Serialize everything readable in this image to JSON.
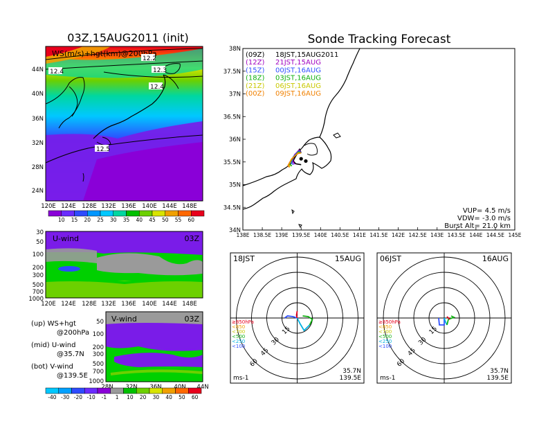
{
  "left_title": "03Z,15AUG2011 (init)",
  "right_title": "Sonde Tracking Forecast",
  "map_panel": {
    "label": "WS(m/s)+hgt(km)@200hPa",
    "contour_labels": [
      "12.2",
      "12.3",
      "12.4",
      "12.4",
      "12.5"
    ],
    "lat_ticks": [
      "44N",
      "40N",
      "36N",
      "32N",
      "28N",
      "24N"
    ],
    "lon_ticks": [
      "120E",
      "124E",
      "128E",
      "132E",
      "136E",
      "140E",
      "144E",
      "148E"
    ]
  },
  "ws_colorbar": {
    "labels": [
      "10",
      "15",
      "20",
      "25",
      "30",
      "35",
      "40",
      "45",
      "50",
      "55",
      "60"
    ],
    "colors": [
      "#8a00d8",
      "#6a2cff",
      "#2e4bff",
      "#0096ff",
      "#00c8ff",
      "#00d7a0",
      "#00c000",
      "#6cd000",
      "#d8e400",
      "#f0a000",
      "#ff6800",
      "#e8001c"
    ]
  },
  "uwind_panel": {
    "label": "U-wind",
    "time": "03Z",
    "p_ticks": [
      "30",
      "50",
      "100",
      "200",
      "300",
      "500",
      "700",
      "1000"
    ],
    "lon_ticks": [
      "120E",
      "124E",
      "128E",
      "132E",
      "136E",
      "140E",
      "144E",
      "148E"
    ]
  },
  "vwind_panel": {
    "label": "V-wind",
    "time": "03Z",
    "p_ticks": [
      "50",
      "100",
      "200",
      "300",
      "500",
      "700",
      "1000"
    ],
    "lat_ticks": [
      "28N",
      "32N",
      "36N",
      "40N",
      "44N"
    ]
  },
  "legend_notes": [
    [
      "(up) WS+hgt",
      "@200hPa"
    ],
    [
      "(mid) U-wind",
      "@35.7N"
    ],
    [
      "(bot) V-wind",
      "@139.5E"
    ]
  ],
  "wind_colorbar": {
    "labels": [
      "-40",
      "-30",
      "-20",
      "-10",
      "-1",
      "1",
      "10",
      "20",
      "30",
      "40",
      "50",
      "60"
    ],
    "colors": [
      "#00c8ff",
      "#00a0ff",
      "#2e4bff",
      "#6a2cff",
      "#8a00d8",
      "#9a9a9a",
      "#00c000",
      "#6cd000",
      "#d8e400",
      "#f0a000",
      "#ff6800",
      "#e8001c"
    ]
  },
  "tracking_map": {
    "launches": [
      {
        "utc": "(09Z)",
        "jst": "18JST,15AUG2011",
        "color": "#000000"
      },
      {
        "utc": "(12Z)",
        "jst": "21JST,15AUG",
        "color": "#a000c0"
      },
      {
        "utc": "(15Z)",
        "jst": "00JST,16AUG",
        "color": "#3050ff"
      },
      {
        "utc": "(18Z)",
        "jst": "03JST,16AUG",
        "color": "#10b010"
      },
      {
        "utc": "(21Z)",
        "jst": "06JST,16AUG",
        "color": "#c8c800"
      },
      {
        "utc": "(00Z)",
        "jst": "09JST,16AUG",
        "color": "#f08000"
      }
    ],
    "lat_ticks": [
      "38N",
      "37.5N",
      "37N",
      "36.5N",
      "36N",
      "35.5N",
      "35N",
      "34.5N",
      "34N"
    ],
    "lon_ticks": [
      "138E",
      "138.5E",
      "139E",
      "139.5E",
      "140E",
      "140.5E",
      "141E",
      "141.5E",
      "142E",
      "142.5E",
      "143E",
      "143.5E",
      "144E",
      "144.5E",
      "145E"
    ],
    "params": [
      "VUP= 4.5 m/s",
      "VDW= -3.0 m/s",
      "Burst Alt= 21.0 km"
    ]
  },
  "hodograph_left": {
    "time": "18JST",
    "date": "15AUG",
    "ring_labels": [
      "15",
      "30",
      "45",
      "60"
    ],
    "level_legend": [
      {
        "text": "≥850hPa",
        "color": "#e8001c"
      },
      {
        "text": "<850",
        "color": "#f0a000"
      },
      {
        "text": "<700",
        "color": "#c8c800"
      },
      {
        "text": "<500",
        "color": "#10b010"
      },
      {
        "text": "<250",
        "color": "#00b0e0"
      },
      {
        "text": "<100",
        "color": "#3050ff"
      }
    ],
    "unit": "ms-1",
    "loc_lat": "35.7N",
    "loc_lon": "139.5E"
  },
  "hodograph_right": {
    "time": "06JST",
    "date": "16AUG",
    "ring_labels": [
      "15",
      "30",
      "45",
      "60"
    ],
    "level_legend": [
      {
        "text": "≥850hPa",
        "color": "#e8001c"
      },
      {
        "text": "<850",
        "color": "#f0a000"
      },
      {
        "text": "<700",
        "color": "#c8c800"
      },
      {
        "text": "<500",
        "color": "#10b010"
      },
      {
        "text": "<250",
        "color": "#00b0e0"
      },
      {
        "text": "<100",
        "color": "#3050ff"
      }
    ],
    "unit": "ms-1",
    "loc_lat": "35.7N",
    "loc_lon": "139.5E"
  },
  "chart_data": {
    "type": "line",
    "title": "Sonde Tracking Forecast",
    "xlim": [
      138,
      145
    ],
    "ylim": [
      34,
      38
    ],
    "series": [
      {
        "name": "(09Z)",
        "x": [
          139.5,
          139.46,
          139.35,
          139.3,
          139.36,
          139.5
        ],
        "y": [
          35.7,
          35.78,
          35.66,
          35.52,
          35.46,
          35.44
        ]
      },
      {
        "name": "(12Z)",
        "x": [
          139.5,
          139.45,
          139.33,
          139.28,
          139.33
        ],
        "y": [
          35.7,
          35.76,
          35.66,
          35.52,
          35.45
        ]
      },
      {
        "name": "(15Z)",
        "x": [
          139.5,
          139.44,
          139.3,
          139.25,
          139.3
        ],
        "y": [
          35.7,
          35.74,
          35.62,
          35.48,
          35.44
        ]
      },
      {
        "name": "(18Z)",
        "x": [
          139.5,
          139.43,
          139.3,
          139.2,
          139.26
        ],
        "y": [
          35.7,
          35.72,
          35.6,
          35.46,
          35.41
        ]
      },
      {
        "name": "(21Z)",
        "x": [
          139.5,
          139.42,
          139.27,
          139.18,
          139.22
        ],
        "y": [
          35.7,
          35.7,
          35.58,
          35.44,
          35.4
        ]
      },
      {
        "name": "(00Z)",
        "x": [
          139.5,
          139.4,
          139.25,
          139.16,
          139.2
        ],
        "y": [
          35.7,
          35.68,
          35.56,
          35.42,
          35.38
        ]
      }
    ],
    "landing_points": [
      {
        "x": 139.62,
        "y": 35.52
      },
      {
        "x": 139.5,
        "y": 35.57
      }
    ]
  }
}
